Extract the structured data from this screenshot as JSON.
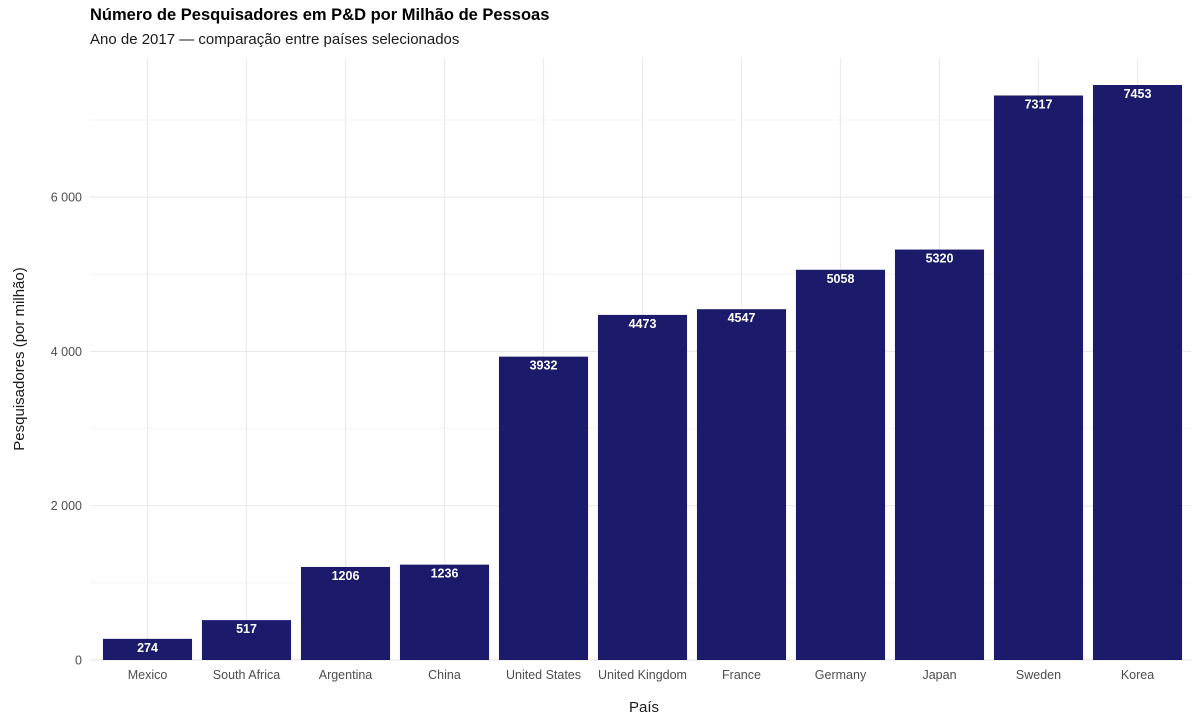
{
  "chart_data": {
    "type": "bar",
    "title": "Número de Pesquisadores em P&D por Milhão de Pessoas",
    "subtitle": "Ano de 2017 — comparação entre países selecionados",
    "xlabel": "País",
    "ylabel": "Pesquisadores (por milhão)",
    "categories": [
      "Mexico",
      "South Africa",
      "Argentina",
      "China",
      "United States",
      "United Kingdom",
      "France",
      "Germany",
      "Japan",
      "Sweden",
      "Korea"
    ],
    "values": [
      274,
      517,
      1206,
      1236,
      3932,
      4473,
      4547,
      5058,
      5320,
      7317,
      7453
    ],
    "data_labels": [
      "274",
      "517",
      "1206",
      "1236",
      "3932",
      "4473",
      "4547",
      "5058",
      "5320",
      "7317",
      "7453"
    ],
    "yticks": [
      0,
      2000,
      4000,
      6000
    ],
    "ytick_labels": [
      "0",
      "2 000",
      "4 000",
      "6 000"
    ],
    "ylim": [
      0,
      7453
    ],
    "grid": true,
    "legend": "none",
    "colors": {
      "bar": "#1b1a6b",
      "grid_major": "#ebebeb",
      "grid_minor": "#f4f4f4",
      "axis_text": "#4d4d4d",
      "label_text": "#ffffff"
    }
  }
}
